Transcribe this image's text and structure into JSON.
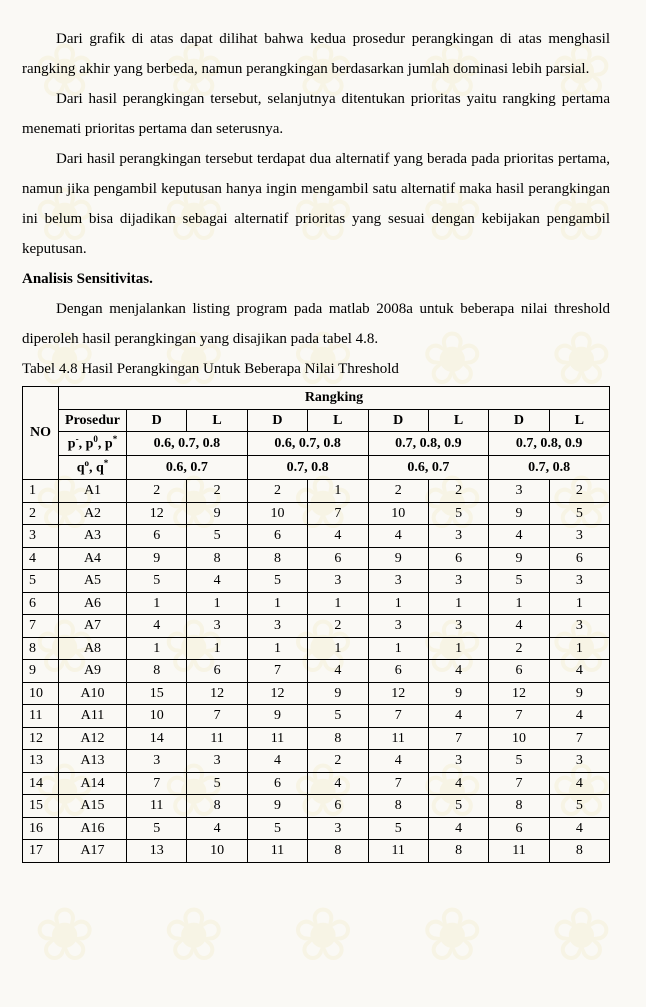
{
  "paragraphs": {
    "p1": "Dari grafik di atas dapat dilihat bahwa kedua prosedur perangkingan di atas menghasil rangking akhir yang berbeda, namun perangkingan berdasarkan jumlah dominasi lebih parsial.",
    "p2": "Dari hasil perangkingan tersebut, selanjutnya ditentukan prioritas yaitu rangking pertama menemati prioritas pertama dan seterusnya.",
    "p3": "Dari hasil perangkingan tersebut terdapat dua alternatif yang berada pada prioritas pertama, namun jika pengambil keputusan hanya ingin mengambil satu alternatif maka hasil perangkingan ini belum bisa dijadikan sebagai alternatif prioritas yang sesuai dengan kebijakan pengambil keputusan.",
    "h1": "Analisis Sensitivitas.",
    "p4": "Dengan menjalankan listing program pada matlab 2008a untuk beberapa nilai threshold diperoleh hasil perangkingan yang disajikan pada tabel 4.8.",
    "caption": "Tabel 4.8 Hasil Perangkingan Untuk Beberapa Nilai Threshold"
  },
  "table": {
    "header": {
      "rangking": "Rangking",
      "no": "NO",
      "prosedur": "Prosedur",
      "D": "D",
      "L": "L",
      "p_row_label": "p⁻, p⁰, p*",
      "q_row_label": "qᵒ, q*",
      "p_sets": [
        "0.6, 0.7, 0.8",
        "0.6, 0.7, 0.8",
        "0.7, 0.8, 0.9",
        "0.7, 0.8, 0.9"
      ],
      "q_sets": [
        "0.6, 0.7",
        "0.7, 0.8",
        "0.6, 0.7",
        "0.7, 0.8"
      ]
    },
    "rows": [
      {
        "no": "1",
        "alt": "A1",
        "v": [
          "2",
          "2",
          "2",
          "1",
          "2",
          "2",
          "3",
          "2"
        ]
      },
      {
        "no": "2",
        "alt": "A2",
        "v": [
          "12",
          "9",
          "10",
          "7",
          "10",
          "5",
          "9",
          "5"
        ]
      },
      {
        "no": "3",
        "alt": "A3",
        "v": [
          "6",
          "5",
          "6",
          "4",
          "4",
          "3",
          "4",
          "3"
        ]
      },
      {
        "no": "4",
        "alt": "A4",
        "v": [
          "9",
          "8",
          "8",
          "6",
          "9",
          "6",
          "9",
          "6"
        ]
      },
      {
        "no": "5",
        "alt": "A5",
        "v": [
          "5",
          "4",
          "5",
          "3",
          "3",
          "3",
          "5",
          "3"
        ]
      },
      {
        "no": "6",
        "alt": "A6",
        "v": [
          "1",
          "1",
          "1",
          "1",
          "1",
          "1",
          "1",
          "1"
        ]
      },
      {
        "no": "7",
        "alt": "A7",
        "v": [
          "4",
          "3",
          "3",
          "2",
          "3",
          "3",
          "4",
          "3"
        ]
      },
      {
        "no": "8",
        "alt": "A8",
        "v": [
          "1",
          "1",
          "1",
          "1",
          "1",
          "1",
          "2",
          "1"
        ]
      },
      {
        "no": "9",
        "alt": "A9",
        "v": [
          "8",
          "6",
          "7",
          "4",
          "6",
          "4",
          "6",
          "4"
        ]
      },
      {
        "no": "10",
        "alt": "A10",
        "v": [
          "15",
          "12",
          "12",
          "9",
          "12",
          "9",
          "12",
          "9"
        ]
      },
      {
        "no": "11",
        "alt": "A11",
        "v": [
          "10",
          "7",
          "9",
          "5",
          "7",
          "4",
          "7",
          "4"
        ]
      },
      {
        "no": "12",
        "alt": "A12",
        "v": [
          "14",
          "11",
          "11",
          "8",
          "11",
          "7",
          "10",
          "7"
        ]
      },
      {
        "no": "13",
        "alt": "A13",
        "v": [
          "3",
          "3",
          "4",
          "2",
          "4",
          "3",
          "5",
          "3"
        ]
      },
      {
        "no": "14",
        "alt": "A14",
        "v": [
          "7",
          "5",
          "6",
          "4",
          "7",
          "4",
          "7",
          "4"
        ]
      },
      {
        "no": "15",
        "alt": "A15",
        "v": [
          "11",
          "8",
          "9",
          "6",
          "8",
          "5",
          "8",
          "5"
        ]
      },
      {
        "no": "16",
        "alt": "A16",
        "v": [
          "5",
          "4",
          "5",
          "3",
          "5",
          "4",
          "6",
          "4"
        ]
      },
      {
        "no": "17",
        "alt": "A17",
        "v": [
          "13",
          "10",
          "11",
          "8",
          "11",
          "8",
          "11",
          "8"
        ]
      }
    ]
  }
}
